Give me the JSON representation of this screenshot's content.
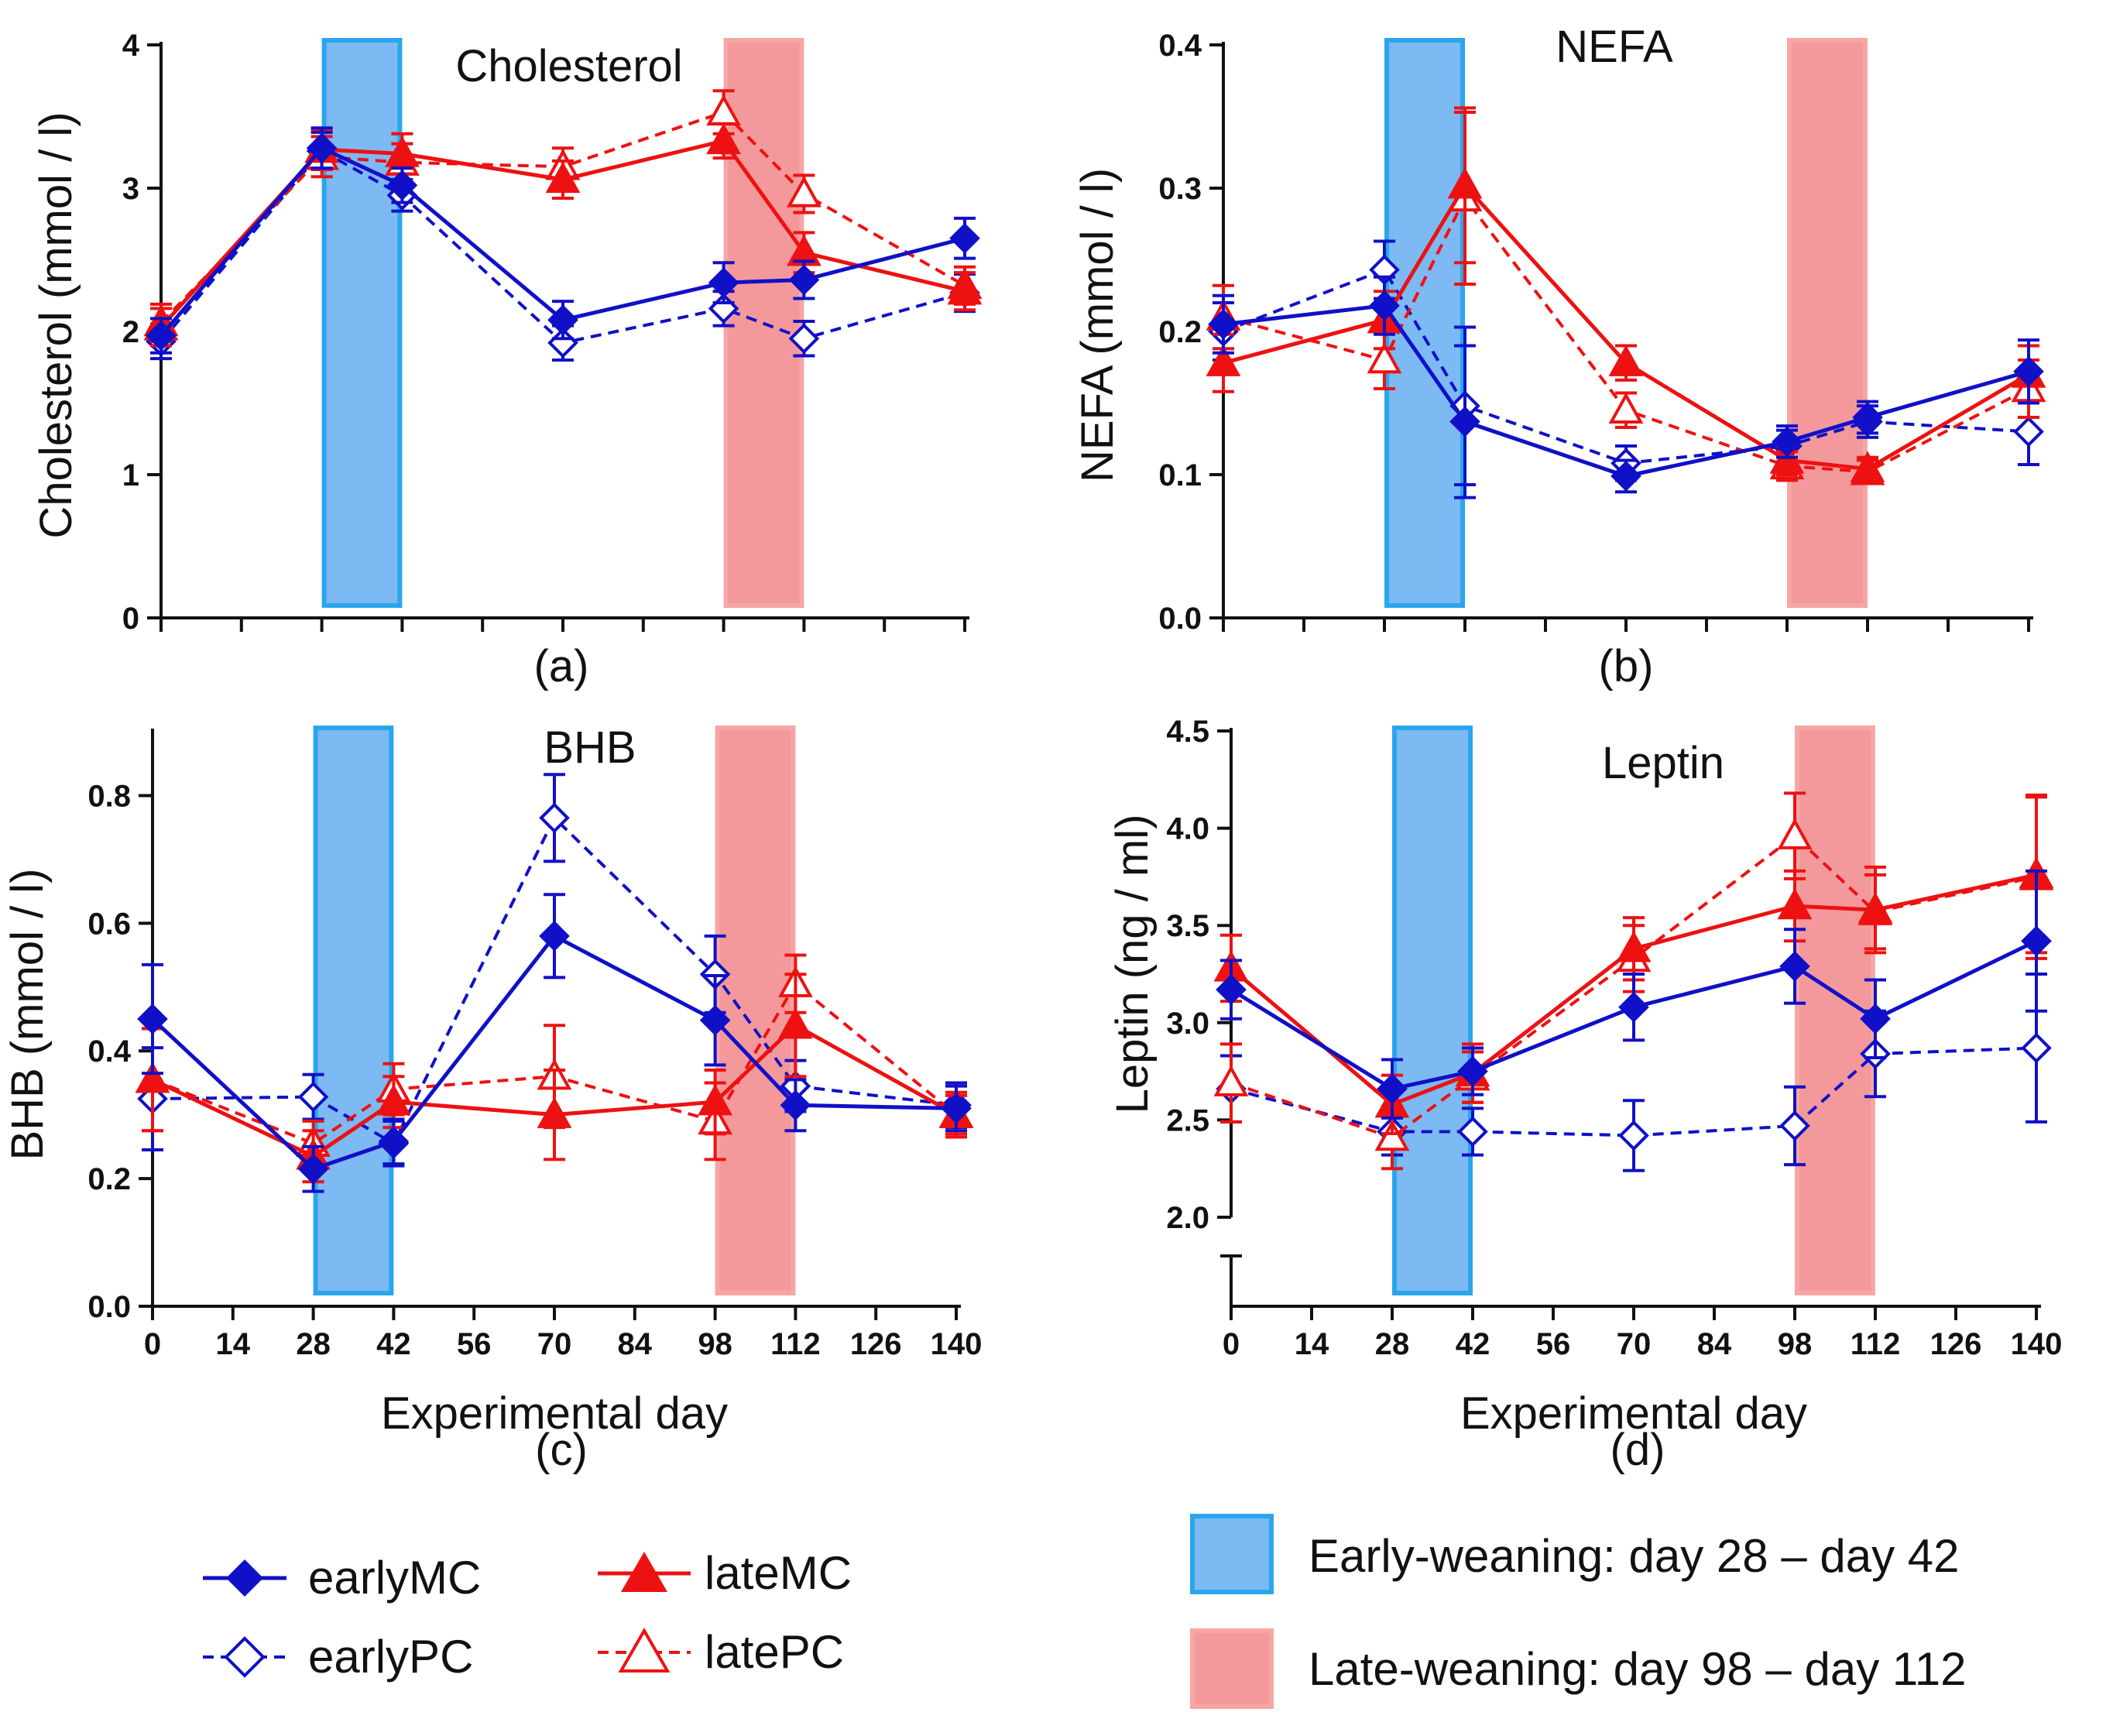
{
  "colors": {
    "early": "#1010c8",
    "late": "#ee1111",
    "early_band_fill": "#7db9f2",
    "early_band_stroke": "#2aa6ee",
    "late_band_fill": "#f4999b",
    "late_band_stroke": "#f7a5a5"
  },
  "legend": {
    "earlyMC": "earlyMC",
    "earlyPC": "earlyPC",
    "lateMC": "lateMC",
    "latePC": "latePC",
    "early_weaning": "Early-weaning: day 28 – day 42",
    "late_weaning": "Late-weaning: day 98 – day 112"
  },
  "chart_data": [
    {
      "type": "line",
      "panel_label": "(a)",
      "title": "Cholesterol",
      "ylabel": "Cholesterol (mmol / l)",
      "xlabel": "",
      "ylim": [
        0,
        4
      ],
      "yticks": [
        0,
        1,
        2,
        3,
        4
      ],
      "ytick_labels": [
        "0",
        "1",
        "2",
        "3",
        "4"
      ],
      "xlim": [
        0,
        140
      ],
      "xticks": [
        0,
        14,
        28,
        42,
        56,
        70,
        84,
        98,
        112,
        126,
        140
      ],
      "xtick_labels": [],
      "bands": [
        [
          28,
          42
        ],
        [
          98,
          112
        ]
      ],
      "series": [
        {
          "name": "earlyMC",
          "x": [
            0,
            28,
            42,
            70,
            98,
            112,
            140
          ],
          "values": [
            1.97,
            3.28,
            3.02,
            2.08,
            2.34,
            2.36,
            2.65
          ],
          "err": [
            0.12,
            0.14,
            0.12,
            0.13,
            0.14,
            0.13,
            0.14
          ]
        },
        {
          "name": "earlyPC",
          "x": [
            0,
            28,
            42,
            70,
            98,
            112,
            140
          ],
          "values": [
            1.93,
            3.26,
            2.95,
            1.92,
            2.16,
            1.95,
            2.27
          ],
          "err": [
            0.12,
            0.13,
            0.11,
            0.12,
            0.12,
            0.12,
            0.13
          ]
        },
        {
          "name": "lateMC",
          "x": [
            0,
            28,
            42,
            70,
            98,
            112,
            140
          ],
          "values": [
            2.03,
            3.27,
            3.24,
            3.06,
            3.33,
            2.55,
            2.28
          ],
          "err": [
            0.13,
            0.14,
            0.14,
            0.13,
            0.12,
            0.14,
            0.13
          ]
        },
        {
          "name": "latePC",
          "x": [
            0,
            28,
            42,
            70,
            98,
            112,
            140
          ],
          "values": [
            2.06,
            3.22,
            3.18,
            3.15,
            3.53,
            2.96,
            2.32
          ],
          "err": [
            0.13,
            0.14,
            0.13,
            0.13,
            0.15,
            0.13,
            0.13
          ]
        }
      ]
    },
    {
      "type": "line",
      "panel_label": "(b)",
      "title": "NEFA",
      "ylabel": "NEFA (mmol / l)",
      "xlabel": "",
      "ylim": [
        0,
        0.4
      ],
      "yticks": [
        0,
        0.1,
        0.2,
        0.3,
        0.4
      ],
      "ytick_labels": [
        "0.0",
        "0.1",
        "0.2",
        "0.3",
        "0.4"
      ],
      "xlim": [
        0,
        140
      ],
      "xticks": [
        0,
        14,
        28,
        42,
        56,
        70,
        84,
        98,
        112,
        126,
        140
      ],
      "xtick_labels": [],
      "bands": [
        [
          28,
          42
        ],
        [
          98,
          112
        ]
      ],
      "series": [
        {
          "name": "earlyMC",
          "x": [
            0,
            28,
            42,
            70,
            98,
            112,
            140
          ],
          "values": [
            0.205,
            0.218,
            0.137,
            0.099,
            0.123,
            0.14,
            0.172
          ],
          "err": [
            0.02,
            0.02,
            0.053,
            0.011,
            0.011,
            0.011,
            0.022
          ]
        },
        {
          "name": "earlyPC",
          "x": [
            0,
            28,
            42,
            70,
            98,
            112,
            140
          ],
          "values": [
            0.2,
            0.243,
            0.148,
            0.108,
            0.12,
            0.137,
            0.13
          ],
          "err": [
            0.02,
            0.02,
            0.055,
            0.012,
            0.011,
            0.011,
            0.023
          ]
        },
        {
          "name": "lateMC",
          "x": [
            0,
            28,
            42,
            70,
            98,
            112,
            140
          ],
          "values": [
            0.178,
            0.208,
            0.302,
            0.178,
            0.11,
            0.104,
            0.17
          ],
          "err": [
            0.02,
            0.02,
            0.054,
            0.012,
            0.01,
            0.008,
            0.02
          ]
        },
        {
          "name": "latePC",
          "x": [
            0,
            28,
            42,
            70,
            98,
            112,
            140
          ],
          "values": [
            0.21,
            0.18,
            0.293,
            0.145,
            0.106,
            0.102,
            0.16
          ],
          "err": [
            0.022,
            0.02,
            0.06,
            0.012,
            0.01,
            0.008,
            0.02
          ]
        }
      ]
    },
    {
      "type": "line",
      "panel_label": "(c)",
      "title": "BHB",
      "ylabel": "BHB (mmol / l)",
      "xlabel": "Experimental day",
      "ylim": [
        0,
        0.9
      ],
      "yticks": [
        0,
        0.2,
        0.4,
        0.6,
        0.8
      ],
      "ytick_labels": [
        "0.0",
        "0.2",
        "0.4",
        "0.6",
        "0.8"
      ],
      "xlim": [
        0,
        140
      ],
      "xticks": [
        0,
        14,
        28,
        42,
        56,
        70,
        84,
        98,
        112,
        126,
        140
      ],
      "xtick_labels": [
        "0",
        "14",
        "28",
        "42",
        "56",
        "70",
        "84",
        "98",
        "112",
        "126",
        "140"
      ],
      "bands": [
        [
          28,
          42
        ],
        [
          98,
          112
        ]
      ],
      "series": [
        {
          "name": "earlyMC",
          "x": [
            0,
            28,
            42,
            70,
            98,
            112,
            140
          ],
          "values": [
            0.45,
            0.215,
            0.258,
            0.58,
            0.448,
            0.315,
            0.31
          ],
          "err": [
            0.085,
            0.035,
            0.035,
            0.065,
            0.07,
            0.04,
            0.035
          ]
        },
        {
          "name": "earlyPC",
          "x": [
            0,
            28,
            42,
            70,
            98,
            112,
            140
          ],
          "values": [
            0.325,
            0.328,
            0.255,
            0.765,
            0.52,
            0.345,
            0.315
          ],
          "err": [
            0.08,
            0.035,
            0.035,
            0.068,
            0.06,
            0.04,
            0.035
          ]
        },
        {
          "name": "lateMC",
          "x": [
            0,
            28,
            42,
            70,
            98,
            112,
            140
          ],
          "values": [
            0.355,
            0.235,
            0.32,
            0.3,
            0.32,
            0.44,
            0.3
          ],
          "err": [
            0.08,
            0.04,
            0.04,
            0.07,
            0.05,
            0.08,
            0.035
          ]
        },
        {
          "name": "latePC",
          "x": [
            0,
            28,
            42,
            70,
            98,
            112,
            140
          ],
          "values": [
            0.355,
            0.255,
            0.34,
            0.36,
            0.29,
            0.505,
            0.3
          ],
          "err": [
            0.08,
            0.035,
            0.04,
            0.08,
            0.06,
            0.045,
            0.03
          ]
        }
      ]
    },
    {
      "type": "line",
      "panel_label": "(d)",
      "title": "Leptin",
      "ylabel": "Leptin (ng / ml)",
      "xlabel": "Experimental day",
      "ylim": [
        2,
        4.5
      ],
      "yticks": [
        2,
        2.5,
        3,
        3.5,
        4,
        4.5
      ],
      "ytick_labels": [
        "2.0",
        "2.5",
        "3.0",
        "3.5",
        "4.0",
        "4.5"
      ],
      "axis_break": true,
      "xlim": [
        0,
        140
      ],
      "xticks": [
        0,
        14,
        28,
        42,
        56,
        70,
        84,
        98,
        112,
        126,
        140
      ],
      "xtick_labels": [
        "0",
        "14",
        "28",
        "42",
        "56",
        "70",
        "84",
        "98",
        "112",
        "126",
        "140"
      ],
      "bands": [
        [
          28,
          42
        ],
        [
          98,
          112
        ]
      ],
      "series": [
        {
          "name": "earlyMC",
          "x": [
            0,
            28,
            42,
            70,
            98,
            112,
            140
          ],
          "values": [
            3.17,
            2.66,
            2.75,
            3.08,
            3.29,
            3.02,
            3.42
          ],
          "err": [
            0.15,
            0.15,
            0.12,
            0.17,
            0.19,
            0.2,
            0.36
          ]
        },
        {
          "name": "earlyPC",
          "x": [
            0,
            28,
            42,
            70,
            98,
            112,
            140
          ],
          "values": [
            2.66,
            2.44,
            2.44,
            2.42,
            2.47,
            2.84,
            2.87
          ],
          "err": [
            0.17,
            0.12,
            0.12,
            0.18,
            0.2,
            0.22,
            0.38
          ]
        },
        {
          "name": "lateMC",
          "x": [
            0,
            28,
            42,
            70,
            98,
            112,
            140
          ],
          "values": [
            3.28,
            2.58,
            2.74,
            3.38,
            3.6,
            3.58,
            3.76
          ],
          "err": [
            0.17,
            0.15,
            0.15,
            0.16,
            0.18,
            0.22,
            0.4
          ]
        },
        {
          "name": "latePC",
          "x": [
            0,
            28,
            42,
            70,
            98,
            112,
            140
          ],
          "values": [
            2.69,
            2.41,
            2.72,
            3.33,
            3.96,
            3.57,
            3.75
          ],
          "err": [
            0.2,
            0.16,
            0.13,
            0.17,
            0.22,
            0.19,
            0.42
          ]
        }
      ]
    }
  ]
}
